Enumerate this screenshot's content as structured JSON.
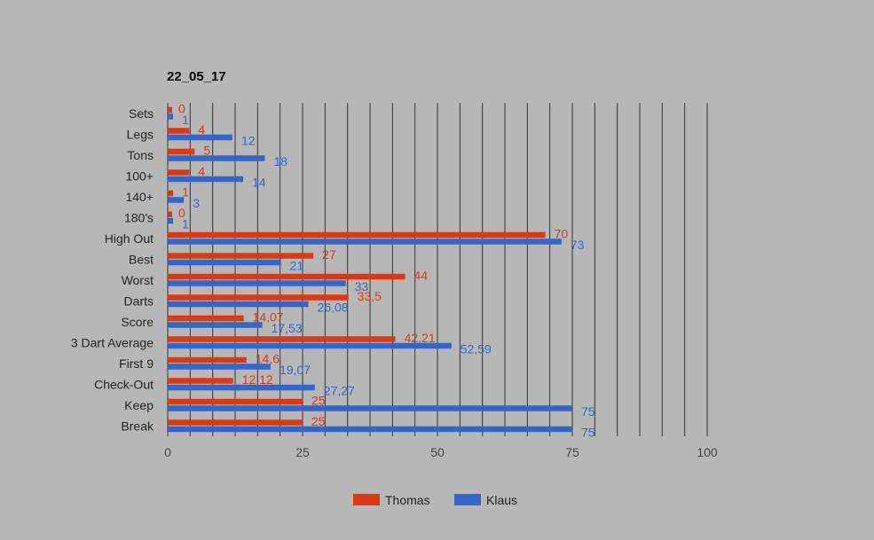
{
  "chart_data": {
    "type": "bar",
    "orientation": "horizontal",
    "title": "22_05_17",
    "categories": [
      "Sets",
      "Legs",
      "Tons",
      "100+",
      "140+",
      "180's",
      "High Out",
      "Best",
      "Worst",
      "Darts",
      "Score",
      "3 Dart Average",
      "First 9",
      "Check-Out",
      "Keep",
      "Break"
    ],
    "series": [
      {
        "name": "Thomas",
        "color": "#dc3912",
        "values": [
          0,
          4,
          5,
          4,
          1,
          0,
          70,
          27,
          44,
          33.5,
          14.07,
          42.21,
          14.6,
          12.12,
          25,
          25
        ],
        "labels": [
          "0",
          "4",
          "5",
          "4",
          "1",
          "0",
          "70",
          "27",
          "44",
          "33,5",
          "14,07",
          "42,21",
          "14,6",
          "12,12",
          "25",
          "25"
        ]
      },
      {
        "name": "Klaus",
        "color": "#3366cc",
        "values": [
          1,
          12,
          18,
          14,
          3,
          1,
          73,
          21,
          33,
          26.08,
          17.53,
          52.59,
          19.07,
          27.27,
          75,
          75
        ],
        "labels": [
          "1",
          "12",
          "18",
          "14",
          "3",
          "1",
          "73",
          "21",
          "33",
          "26,08",
          "17,53",
          "52,59",
          "19,07",
          "27,27",
          "75",
          "75"
        ]
      }
    ],
    "xlim": [
      0,
      100
    ],
    "xticks": [
      "0",
      "25",
      "50",
      "75",
      "100"
    ],
    "grid": true,
    "legend": "bottom",
    "background": "#b7b7b7",
    "gridline_color": "#333333"
  }
}
